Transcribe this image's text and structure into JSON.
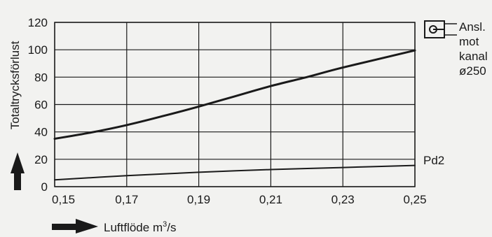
{
  "chart_data": {
    "type": "line",
    "ylabel": "Totaltrycksförlust",
    "xlabel": "Luftflöde m³/s",
    "xlabel_base": "Luftflöde m",
    "xlabel_sup": "3",
    "xlabel_unit": "/s",
    "xlim": [
      0.15,
      0.25
    ],
    "ylim": [
      0,
      120
    ],
    "xticks": [
      0.15,
      0.17,
      0.19,
      0.21,
      0.23,
      0.25
    ],
    "xtick_labels": [
      "0,15",
      "0,17",
      "0,19",
      "0,21",
      "0,23",
      "0,25"
    ],
    "yticks": [
      0,
      20,
      40,
      60,
      80,
      100,
      120
    ],
    "ytick_labels": [
      "0",
      "20",
      "40",
      "60",
      "80",
      "100",
      "120"
    ],
    "grid": true,
    "series": [
      {
        "label_lines": [
          "Ansl.",
          "mot",
          "kanal",
          "ø250"
        ],
        "x": [
          0.15,
          0.16,
          0.17,
          0.18,
          0.19,
          0.2,
          0.21,
          0.22,
          0.23,
          0.25
        ],
        "y": [
          35,
          39.5,
          45,
          51.5,
          58.5,
          66,
          73.5,
          80,
          87,
          99.5
        ]
      },
      {
        "label": "Pd2",
        "x": [
          0.15,
          0.17,
          0.19,
          0.21,
          0.23,
          0.25
        ],
        "y": [
          5,
          8,
          10.5,
          12.5,
          14,
          15.5
        ]
      }
    ],
    "colors": {
      "line": "#1a1a1a",
      "grid": "#1a1a1a",
      "background": "#f2f2f0"
    }
  }
}
